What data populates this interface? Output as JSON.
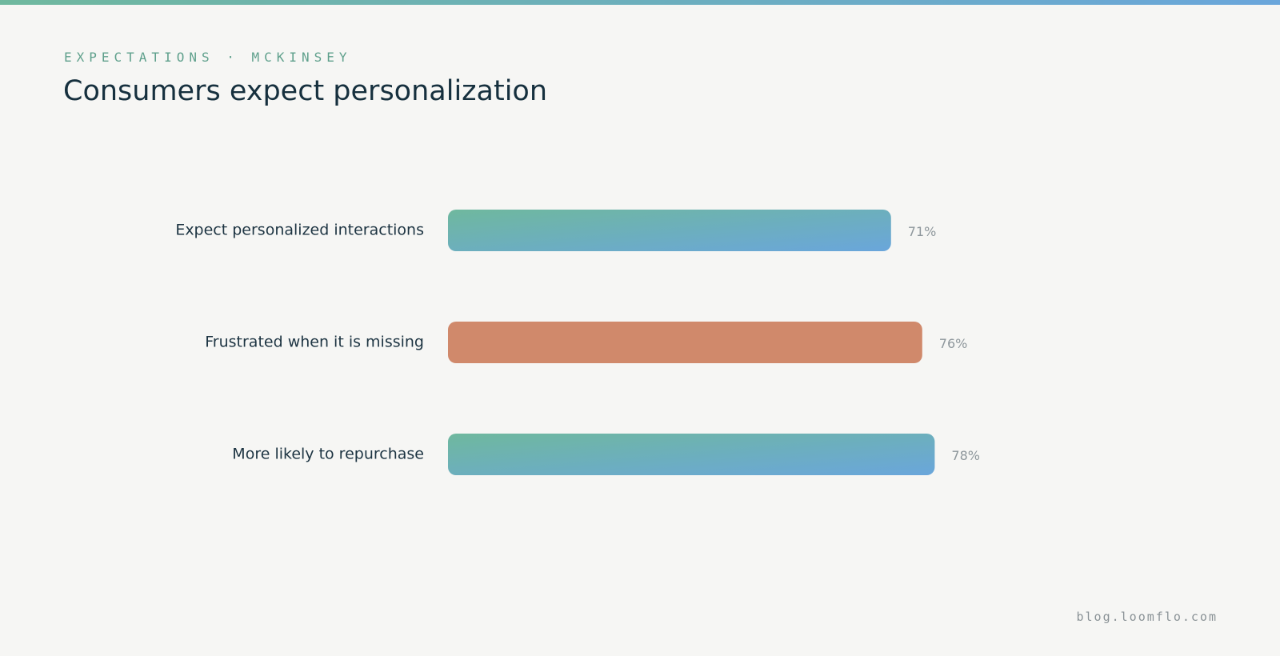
{
  "header": {
    "eyebrow": "EXPECTATIONS · MCKINSEY",
    "title": "Consumers expect personalization"
  },
  "footer": {
    "site": "blog.loomflo.com"
  },
  "colors": {
    "accent_green": "#6fb89e",
    "accent_blue": "#6aa6db",
    "highlight_orange": "#d0896b",
    "title_text": "#16303e",
    "value_text": "#8e979c"
  },
  "chart_data": {
    "type": "bar",
    "orientation": "horizontal",
    "categories": [
      "Expect personalized interactions",
      "Frustrated when it is missing",
      "More likely to repurchase"
    ],
    "values": [
      71,
      76,
      78
    ],
    "value_labels": [
      "71%",
      "76%",
      "78%"
    ],
    "bar_styles": [
      "gradient",
      "highlight",
      "gradient"
    ],
    "xlim": [
      0,
      100
    ],
    "grid": false,
    "legend": "none"
  }
}
